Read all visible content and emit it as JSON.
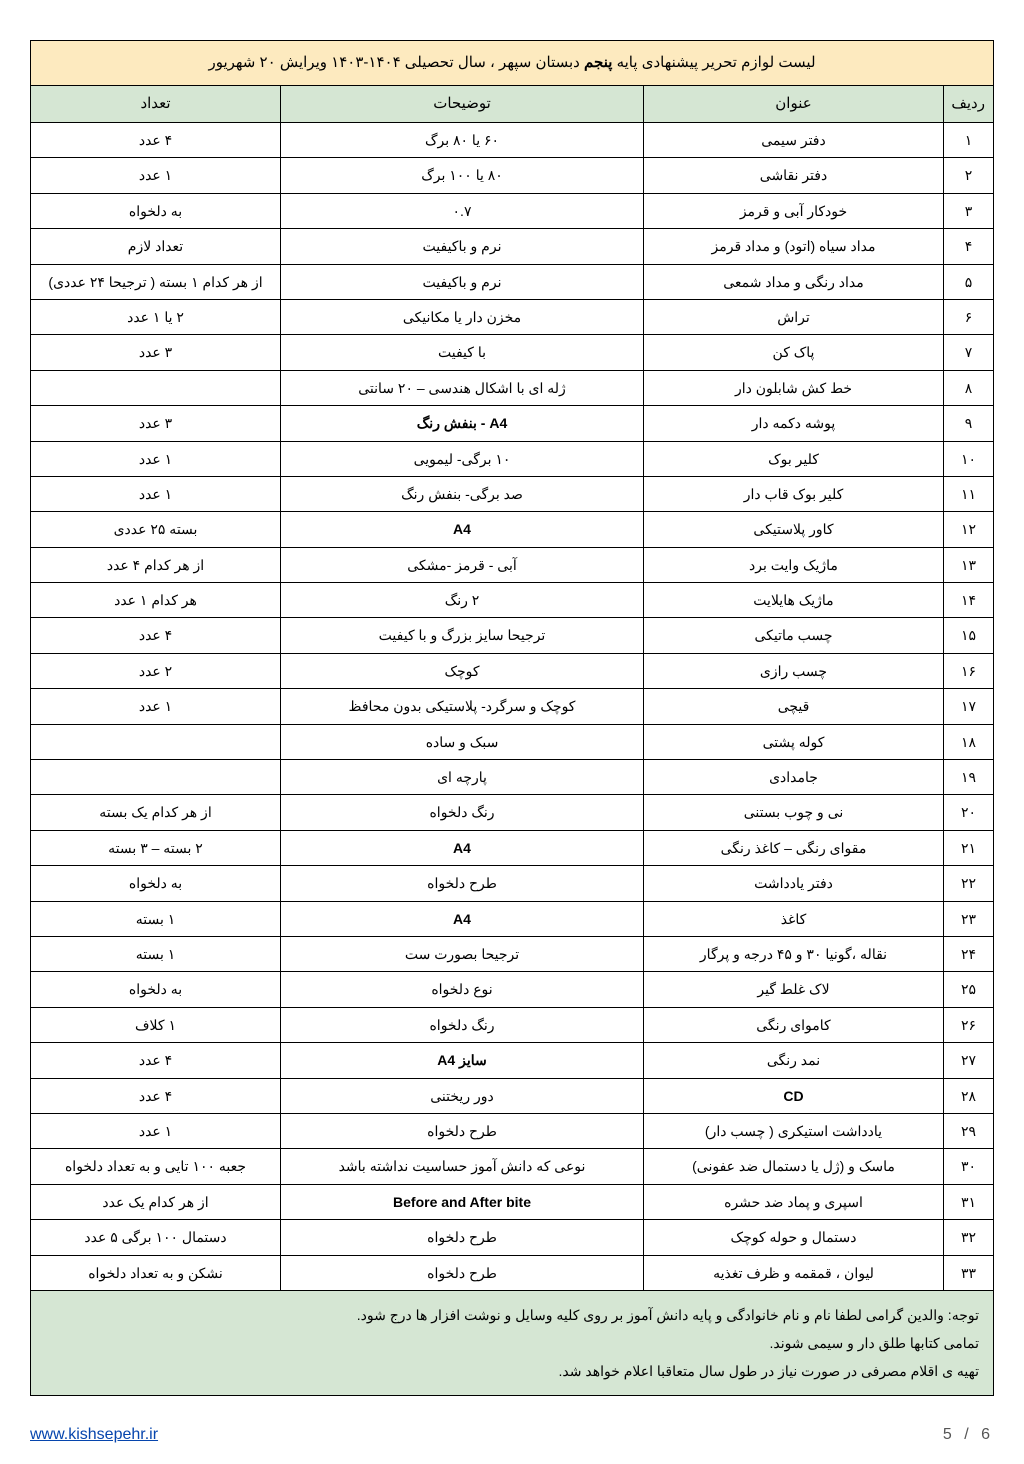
{
  "title_pre": "لیست لوازم تحریر پیشنهادی پایه ",
  "title_bold": "پنجم",
  "title_post": " دبستان سپهر ، سال تحصیلی ۱۴۰۴-۱۴۰۳ ویرایش ۲۰ شهریور",
  "headers": {
    "num": "ردیف",
    "title": "عنوان",
    "desc": "توضیحات",
    "qty": "تعداد"
  },
  "rows": [
    {
      "n": "۱",
      "t": "دفتر سیمی",
      "d": "۶۰ یا ۸۰ برگ",
      "q": "۴ عدد"
    },
    {
      "n": "۲",
      "t": "دفتر نقاشی",
      "d": "۸۰ یا ۱۰۰ برگ",
      "q": "۱ عدد"
    },
    {
      "n": "۳",
      "t": "خودکار آبی و قرمز",
      "d": "۰.۷",
      "q": "به دلخواه"
    },
    {
      "n": "۴",
      "t": "مداد سیاه (اتود) و مداد قرمز",
      "d": "نرم و باکیفیت",
      "q": "تعداد لازم"
    },
    {
      "n": "۵",
      "t": "مداد رنگی و مداد شمعی",
      "d": "نرم و باکیفیت",
      "q": "از هر کدام ۱ بسته ( ترجیحا ۲۴ عددی)"
    },
    {
      "n": "۶",
      "t": "تراش",
      "d": "مخزن دار یا مکانیکی",
      "q": "۲ یا ۱ عدد"
    },
    {
      "n": "۷",
      "t": "پاک کن",
      "d": "با کیفیت",
      "q": "۳ عدد"
    },
    {
      "n": "۸",
      "t": "خط کش شابلون دار",
      "d": "ژله ای با اشکال هندسی – ۲۰ سانتی",
      "q": ""
    },
    {
      "n": "۹",
      "t": "پوشه دکمه دار",
      "d": "A4 - بنفش رنگ",
      "q": "۳ عدد"
    },
    {
      "n": "۱۰",
      "t": "کلیر بوک",
      "d": "۱۰ برگی- لیمویی",
      "q": "۱ عدد"
    },
    {
      "n": "۱۱",
      "t": "کلیر بوک قاب دار",
      "d": "صد برگی- بنفش  رنگ",
      "q": "۱ عدد"
    },
    {
      "n": "۱۲",
      "t": "کاور پلاستیکی",
      "d": "A4",
      "q": "بسته ۲۵ عددی"
    },
    {
      "n": "۱۳",
      "t": "ماژیک وایت برد",
      "d": "آبی - قرمز -مشکی",
      "q": "از هر کدام ۴ عدد"
    },
    {
      "n": "۱۴",
      "t": "ماژیک هایلایت",
      "d": "۲ رنگ",
      "q": "هر کدام ۱ عدد"
    },
    {
      "n": "۱۵",
      "t": "چسب ماتیکی",
      "d": "ترجیحا سایز بزرگ و با کیفیت",
      "q": "۴ عدد"
    },
    {
      "n": "۱۶",
      "t": "چسب رازی",
      "d": "کوچک",
      "q": "۲ عدد"
    },
    {
      "n": "۱۷",
      "t": "قیچی",
      "d": "کوچک و سرگرد- پلاستیکی بدون محافظ",
      "q": "۱ عدد"
    },
    {
      "n": "۱۸",
      "t": "کوله پشتی",
      "d": "سبک و ساده",
      "q": ""
    },
    {
      "n": "۱۹",
      "t": "جامدادی",
      "d": "پارچه ای",
      "q": ""
    },
    {
      "n": "۲۰",
      "t": "نی و چوب بستنی",
      "d": "رنگ دلخواه",
      "q": "از هر کدام یک بسته"
    },
    {
      "n": "۲۱",
      "t": "مقوای رنگی – کاغذ رنگی",
      "d": "A4",
      "q": "۲ بسته – ۳ بسته"
    },
    {
      "n": "۲۲",
      "t": "دفتر یادداشت",
      "d": "طرح دلخواه",
      "q": "به دلخواه"
    },
    {
      "n": "۲۳",
      "t": "کاغذ",
      "d": "A4",
      "q": "۱ بسته"
    },
    {
      "n": "۲۴",
      "t": "نقاله ،گونیا ۳۰ و ۴۵ درجه و پرگار",
      "d": "ترجیحا بصورت ست",
      "q": "۱ بسته"
    },
    {
      "n": "۲۵",
      "t": "لاک غلط گیر",
      "d": "نوع دلخواه",
      "q": "به دلخواه"
    },
    {
      "n": "۲۶",
      "t": "کاموای رنگی",
      "d": "رنگ دلخواه",
      "q": "۱ کلاف"
    },
    {
      "n": "۲۷",
      "t": "نمد رنگی",
      "d": "سایز A4",
      "q": "۴ عدد"
    },
    {
      "n": "۲۸",
      "t": "CD",
      "d": "دور ریختنی",
      "q": "۴ عدد"
    },
    {
      "n": "۲۹",
      "t": "یادداشت استیکری ( چسب دار)",
      "d": "طرح دلخواه",
      "q": "۱ عدد"
    },
    {
      "n": "۳۰",
      "t": "ماسک و (ژل یا دستمال ضد عفونی)",
      "d": "نوعی که دانش آموز حساسیت نداشته باشد",
      "q": "جعبه ۱۰۰ تایی و  به تعداد دلخواه"
    },
    {
      "n": "۳۱",
      "t": "اسپری و پماد ضد حشره",
      "d": "Before and After bite",
      "q": "از هر کدام یک عدد"
    },
    {
      "n": "۳۲",
      "t": "دستمال و حوله کوچک",
      "d": "طرح دلخواه",
      "q": "دستمال ۱۰۰ برگی ۵ عدد"
    },
    {
      "n": "۳۳",
      "t": "لیوان ، قمقمه و ظرف تغذیه",
      "d": "طرح دلخواه",
      "q": "نشکن و به تعداد دلخواه"
    }
  ],
  "notes": [
    "توجه:  والدین گرامی لطفا نام و نام خانوادگی و پایه دانش آموز بر روی کلیه وسایل و نوشت افزار ها درج شود.",
    "تمامی کتابها طلق دار و سیمی شوند.",
    "تهیه ی اقلام مصرفی در صورت نیاز در طول سال متعاقبا اعلام خواهد شد."
  ],
  "footer": {
    "url_text": "www.kishsepehr.ir",
    "page": "5  /  6"
  },
  "colors": {
    "title_bg": "#fdeabf",
    "header_bg": "#d5e6d3",
    "border": "#000000",
    "link": "#0645ad"
  }
}
